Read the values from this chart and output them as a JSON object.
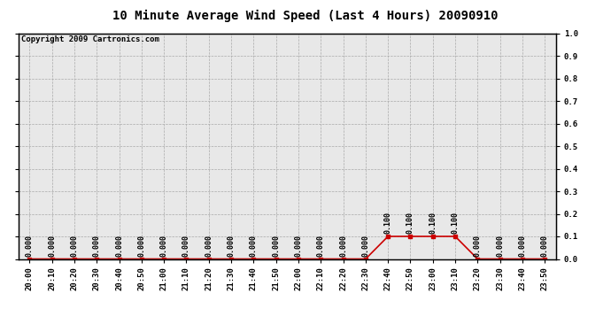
{
  "title": "10 Minute Average Wind Speed (Last 4 Hours) 20090910",
  "copyright_text": "Copyright 2009 Cartronics.com",
  "x_labels": [
    "20:00",
    "20:10",
    "20:20",
    "20:30",
    "20:40",
    "20:50",
    "21:00",
    "21:10",
    "21:20",
    "21:30",
    "21:40",
    "21:50",
    "22:00",
    "22:10",
    "22:20",
    "22:30",
    "22:40",
    "22:50",
    "23:00",
    "23:10",
    "23:20",
    "23:30",
    "23:40",
    "23:50"
  ],
  "y_values": [
    0.0,
    0.0,
    0.0,
    0.0,
    0.0,
    0.0,
    0.0,
    0.0,
    0.0,
    0.0,
    0.0,
    0.0,
    0.0,
    0.0,
    0.0,
    0.0,
    0.1,
    0.1,
    0.1,
    0.1,
    0.0,
    0.0,
    0.0,
    0.0
  ],
  "ylim": [
    0.0,
    1.0
  ],
  "yticks": [
    0.0,
    0.1,
    0.2,
    0.3,
    0.4,
    0.5,
    0.6,
    0.7,
    0.8,
    0.9,
    1.0
  ],
  "line_color": "#cc0000",
  "marker_color": "#cc0000",
  "bg_color": "#e8e8e8",
  "grid_color": "#aaaaaa",
  "title_fontsize": 10,
  "copyright_fontsize": 6.5,
  "annotation_fontsize": 6,
  "tick_fontsize": 6.5
}
